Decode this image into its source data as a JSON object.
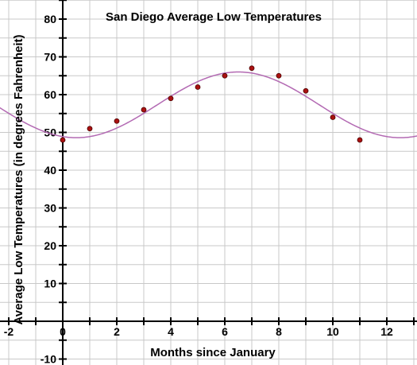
{
  "chart_data": {
    "type": "scatter",
    "title": "San Diego Average Low Temperatures",
    "xlabel": "Months since January",
    "ylabel": "Average Low Temperatures (in degrees Fahrenheit)",
    "xlim": [
      -2,
      13
    ],
    "ylim": [
      -10,
      85
    ],
    "grid": true,
    "x_ticks": [
      -2,
      0,
      2,
      4,
      6,
      8,
      10,
      12
    ],
    "y_ticks": [
      -10,
      10,
      20,
      30,
      40,
      50,
      60,
      70,
      80
    ],
    "points": [
      {
        "x": 0,
        "y": 48
      },
      {
        "x": 1,
        "y": 51
      },
      {
        "x": 2,
        "y": 53
      },
      {
        "x": 3,
        "y": 56
      },
      {
        "x": 4,
        "y": 59
      },
      {
        "x": 5,
        "y": 62
      },
      {
        "x": 6,
        "y": 65
      },
      {
        "x": 7,
        "y": 67
      },
      {
        "x": 8,
        "y": 65
      },
      {
        "x": 9,
        "y": 61
      },
      {
        "x": 10,
        "y": 54
      },
      {
        "x": 11,
        "y": 48
      }
    ],
    "fit_curve": {
      "type": "sinusoid",
      "amplitude": 8.7,
      "midline": 57.3,
      "period": 12,
      "peak_x": 6.5
    },
    "colors": {
      "points": "#aa1111",
      "curve": "#b36ab3",
      "grid": "#c8c8c8",
      "axes": "#000000"
    }
  }
}
